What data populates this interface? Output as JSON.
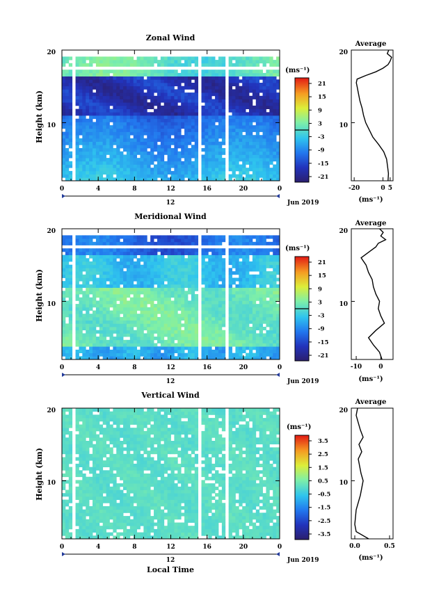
{
  "chart_data": [
    {
      "type": "heatmap",
      "title": "Zonal Wind",
      "ylabel": "Height (km)",
      "yticks": [
        "20",
        "10"
      ],
      "xticks": [
        "0",
        "4",
        "8",
        "12",
        "16",
        "20",
        "0"
      ],
      "date_tick": "12",
      "date_label": "Jun 2019",
      "xlim": [
        0,
        24
      ],
      "ylim": [
        2,
        20
      ],
      "colorbar": {
        "unit": "(ms⁻¹)",
        "ticks": [
          "21",
          "15",
          "9",
          "3",
          "-3",
          "-9",
          "-15",
          "-21"
        ],
        "range": [
          -24,
          24
        ]
      },
      "gaps": [
        [
          1.3,
          1.5
        ],
        [
          5.1,
          5.3
        ],
        [
          5.6,
          5.8
        ],
        [
          15.0,
          15.3
        ],
        [
          17.6,
          17.8
        ],
        [
          18.1,
          18.4
        ]
      ],
      "average": {
        "title": "Average",
        "yticks": [
          "20",
          "10"
        ],
        "xticks": [
          "-20",
          "0",
          "5"
        ],
        "xlabel": "(ms⁻¹)",
        "xlim": [
          -22,
          7
        ],
        "profile": [
          [
            2,
            3.5
          ],
          [
            3,
            3.8
          ],
          [
            4,
            3.2
          ],
          [
            5,
            2.5
          ],
          [
            6,
            0.5
          ],
          [
            7,
            -3
          ],
          [
            8,
            -7
          ],
          [
            9,
            -9.5
          ],
          [
            10,
            -12
          ],
          [
            11,
            -13.5
          ],
          [
            12,
            -14.5
          ],
          [
            13,
            -16
          ],
          [
            14,
            -17
          ],
          [
            15,
            -18
          ],
          [
            15.5,
            -18.5
          ],
          [
            16,
            -18
          ],
          [
            16.5,
            -12
          ],
          [
            17,
            -5
          ],
          [
            17.5,
            0
          ],
          [
            18,
            3.5
          ],
          [
            18.5,
            5
          ],
          [
            19,
            6
          ],
          [
            19.5,
            3
          ],
          [
            20,
            4
          ]
        ]
      }
    },
    {
      "type": "heatmap",
      "title": "Meridional Wind",
      "ylabel": "Height (km)",
      "yticks": [
        "20",
        "10"
      ],
      "xticks": [
        "0",
        "4",
        "8",
        "12",
        "16",
        "20",
        "0"
      ],
      "date_tick": "12",
      "date_label": "Jun 2019",
      "xlim": [
        0,
        24
      ],
      "ylim": [
        2,
        20
      ],
      "colorbar": {
        "unit": "(ms⁻¹)",
        "ticks": [
          "21",
          "15",
          "9",
          "3",
          "-3",
          "-9",
          "-15",
          "-21"
        ],
        "range": [
          -24,
          24
        ]
      },
      "gaps": [
        [
          1.3,
          1.5
        ],
        [
          5.1,
          5.3
        ],
        [
          5.6,
          5.8
        ],
        [
          15.0,
          15.3
        ],
        [
          17.6,
          17.8
        ],
        [
          18.1,
          18.4
        ]
      ],
      "average": {
        "title": "Average",
        "yticks": [
          "20",
          "10"
        ],
        "xticks": [
          "-10",
          "0"
        ],
        "xlabel": "(ms⁻¹)",
        "xlim": [
          -12,
          5
        ],
        "profile": [
          [
            2,
            0.5
          ],
          [
            3,
            -0.5
          ],
          [
            4,
            -3
          ],
          [
            5,
            -5
          ],
          [
            6,
            -2
          ],
          [
            7,
            1.5
          ],
          [
            8,
            0
          ],
          [
            9,
            -1
          ],
          [
            10,
            -0.5
          ],
          [
            11,
            -2
          ],
          [
            12,
            -3
          ],
          [
            13,
            -3.5
          ],
          [
            14,
            -5
          ],
          [
            15,
            -6
          ],
          [
            16,
            -8
          ],
          [
            17,
            -4
          ],
          [
            17.5,
            -2
          ],
          [
            18,
            -1
          ],
          [
            18.5,
            2
          ],
          [
            19,
            0
          ],
          [
            19.5,
            1
          ],
          [
            20,
            -0.5
          ]
        ]
      }
    },
    {
      "type": "heatmap",
      "title": "Vertical Wind",
      "ylabel": "Height (km)",
      "yticks": [
        "20",
        "10"
      ],
      "xticks": [
        "0",
        "4",
        "8",
        "12",
        "16",
        "20",
        "0"
      ],
      "date_tick": "12",
      "date_label": "Jun 2019",
      "xlabel": "Local Time",
      "xlim": [
        0,
        24
      ],
      "ylim": [
        2,
        20
      ],
      "colorbar": {
        "unit": "(ms⁻¹)",
        "ticks": [
          "3.5",
          "2.5",
          "1.5",
          "0.5",
          "-0.5",
          "-1.5",
          "-2.5",
          "-3.5"
        ],
        "range": [
          -4,
          4
        ]
      },
      "gaps": [
        [
          1.3,
          1.5
        ],
        [
          5.1,
          5.3
        ],
        [
          5.6,
          5.8
        ],
        [
          15.0,
          15.3
        ],
        [
          17.6,
          17.8
        ],
        [
          18.1,
          18.4
        ]
      ],
      "average": {
        "title": "Average",
        "yticks": [
          "20",
          "10"
        ],
        "xticks": [
          "0.0",
          "0.5"
        ],
        "xlabel": "(ms⁻¹)",
        "xlim": [
          -0.05,
          0.55
        ],
        "profile": [
          [
            2,
            0.2
          ],
          [
            3,
            0.02
          ],
          [
            4,
            0.0
          ],
          [
            5,
            0.01
          ],
          [
            6,
            0.02
          ],
          [
            7,
            0.05
          ],
          [
            8,
            0.08
          ],
          [
            9,
            0.1
          ],
          [
            10,
            0.12
          ],
          [
            11,
            0.09
          ],
          [
            12,
            0.07
          ],
          [
            13,
            0.05
          ],
          [
            14,
            0.1
          ],
          [
            15,
            0.06
          ],
          [
            16,
            0.12
          ],
          [
            17,
            0.08
          ],
          [
            18,
            0.05
          ],
          [
            19,
            0.02
          ],
          [
            20,
            0.04
          ]
        ]
      }
    }
  ]
}
